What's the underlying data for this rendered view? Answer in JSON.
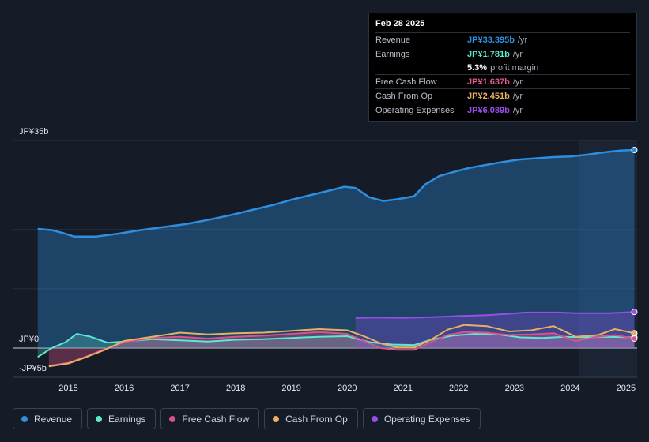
{
  "tooltip": {
    "date": "Feb 28 2025",
    "rows": [
      {
        "label": "Revenue",
        "value": "JP¥33.395b",
        "unit": "/yr",
        "color": "#2e8fe0"
      },
      {
        "label": "Earnings",
        "value": "JP¥1.781b",
        "unit": "/yr",
        "color": "#5ee8d0"
      },
      {
        "label": "",
        "value": "5.3%",
        "unit": "profit margin",
        "color": "#ffffff"
      },
      {
        "label": "Free Cash Flow",
        "value": "JP¥1.637b",
        "unit": "/yr",
        "color": "#e05a8c"
      },
      {
        "label": "Cash From Op",
        "value": "JP¥2.451b",
        "unit": "/yr",
        "color": "#e8b060"
      },
      {
        "label": "Operating Expenses",
        "value": "JP¥6.089b",
        "unit": "/yr",
        "color": "#9b4dea"
      }
    ]
  },
  "legend": [
    {
      "label": "Revenue",
      "color": "#2e8fe0"
    },
    {
      "label": "Earnings",
      "color": "#5ee8d0"
    },
    {
      "label": "Free Cash Flow",
      "color": "#d9538a"
    },
    {
      "label": "Cash From Op",
      "color": "#e8b060"
    },
    {
      "label": "Operating Expenses",
      "color": "#9b4dea"
    }
  ],
  "chart_data": {
    "type": "line",
    "title": "",
    "xlabel": "",
    "ylabel": "",
    "ylim": [
      -5,
      35
    ],
    "xlim": [
      2014.0,
      2025.2
    ],
    "y_tick_labels": [
      {
        "value": 35,
        "label": "JP¥35b"
      },
      {
        "value": 0,
        "label": "JP¥0"
      },
      {
        "value": -5,
        "label": "-JP¥5b"
      }
    ],
    "x_ticks": [
      2015,
      2016,
      2017,
      2018,
      2019,
      2020,
      2021,
      2022,
      2023,
      2024,
      2025
    ],
    "x_tick_labels": [
      "2015",
      "2016",
      "2017",
      "2018",
      "2019",
      "2020",
      "2021",
      "2022",
      "2023",
      "2024",
      "2025"
    ],
    "highlight_start": 2024.15,
    "series": [
      {
        "name": "Revenue",
        "color": "#2e8fe0",
        "fill": true,
        "x": [
          2014.45,
          2014.7,
          2014.9,
          2015.1,
          2015.5,
          2015.9,
          2016.3,
          2016.7,
          2017.1,
          2017.5,
          2017.9,
          2018.3,
          2018.7,
          2019.0,
          2019.3,
          2019.7,
          2019.95,
          2020.15,
          2020.4,
          2020.65,
          2020.9,
          2021.2,
          2021.4,
          2021.65,
          2021.95,
          2022.2,
          2022.5,
          2022.8,
          2023.1,
          2023.4,
          2023.7,
          2024.0,
          2024.3,
          2024.6,
          2024.9,
          2025.15
        ],
        "y": [
          20.1,
          19.9,
          19.4,
          18.8,
          18.8,
          19.3,
          19.9,
          20.4,
          20.9,
          21.6,
          22.4,
          23.3,
          24.2,
          25.0,
          25.7,
          26.6,
          27.2,
          27.0,
          25.4,
          24.8,
          25.1,
          25.6,
          27.6,
          29.0,
          29.8,
          30.4,
          30.9,
          31.4,
          31.8,
          32.0,
          32.2,
          32.3,
          32.6,
          33.0,
          33.3,
          33.4
        ]
      },
      {
        "name": "Earnings",
        "color": "#5ee8d0",
        "fill": true,
        "x": [
          2014.45,
          2014.7,
          2014.95,
          2015.15,
          2015.4,
          2015.7,
          2016.0,
          2016.5,
          2017.0,
          2017.5,
          2018.0,
          2018.5,
          2019.0,
          2019.5,
          2020.0,
          2020.4,
          2020.8,
          2021.2,
          2021.5,
          2021.9,
          2022.3,
          2022.7,
          2023.1,
          2023.5,
          2023.9,
          2024.3,
          2024.7,
          2025.15
        ],
        "y": [
          -1.5,
          0.0,
          1.0,
          2.4,
          1.9,
          0.9,
          1.1,
          1.5,
          1.3,
          1.1,
          1.4,
          1.5,
          1.7,
          1.9,
          2.0,
          1.0,
          0.6,
          0.5,
          1.4,
          2.1,
          2.4,
          2.3,
          1.8,
          1.7,
          1.9,
          1.8,
          1.9,
          1.8
        ]
      },
      {
        "name": "Free Cash Flow",
        "color": "#d9538a",
        "fill": true,
        "x": [
          2014.65,
          2015.0,
          2015.3,
          2015.65,
          2016.0,
          2016.5,
          2017.0,
          2017.5,
          2018.0,
          2018.5,
          2019.0,
          2019.5,
          2020.0,
          2020.3,
          2020.6,
          2020.9,
          2021.2,
          2021.5,
          2021.8,
          2022.1,
          2022.5,
          2022.9,
          2023.3,
          2023.7,
          2024.1,
          2024.5,
          2024.8,
          2025.15
        ],
        "y": [
          -3.0,
          -2.5,
          -1.5,
          -0.2,
          1.0,
          1.7,
          1.9,
          1.6,
          1.9,
          2.1,
          2.4,
          2.7,
          2.4,
          1.2,
          0.0,
          -0.3,
          -0.3,
          1.0,
          2.2,
          2.7,
          2.6,
          2.2,
          2.3,
          2.5,
          1.2,
          1.9,
          2.2,
          1.6
        ]
      },
      {
        "name": "Cash From Op",
        "color": "#e8b060",
        "fill": false,
        "x": [
          2014.65,
          2015.0,
          2015.3,
          2015.65,
          2016.0,
          2016.5,
          2017.0,
          2017.5,
          2018.0,
          2018.5,
          2019.0,
          2019.5,
          2020.0,
          2020.3,
          2020.6,
          2020.9,
          2021.2,
          2021.5,
          2021.8,
          2022.1,
          2022.5,
          2022.9,
          2023.3,
          2023.7,
          2024.1,
          2024.5,
          2024.8,
          2025.15
        ],
        "y": [
          -3.1,
          -2.6,
          -1.6,
          -0.3,
          1.2,
          1.9,
          2.6,
          2.3,
          2.5,
          2.6,
          2.9,
          3.2,
          3.0,
          2.0,
          0.8,
          0.1,
          0.1,
          1.4,
          3.1,
          3.9,
          3.7,
          2.8,
          3.0,
          3.7,
          1.9,
          2.2,
          3.2,
          2.5
        ]
      },
      {
        "name": "Operating Expenses",
        "color": "#9b4dea",
        "fill": true,
        "x": [
          2020.15,
          2020.5,
          2021.0,
          2021.5,
          2022.0,
          2022.5,
          2023.0,
          2023.2,
          2023.5,
          2023.8,
          2024.1,
          2024.4,
          2024.7,
          2025.15
        ],
        "y": [
          5.1,
          5.15,
          5.1,
          5.2,
          5.4,
          5.55,
          5.85,
          6.0,
          6.0,
          6.0,
          5.9,
          5.9,
          5.9,
          6.1
        ]
      }
    ]
  }
}
